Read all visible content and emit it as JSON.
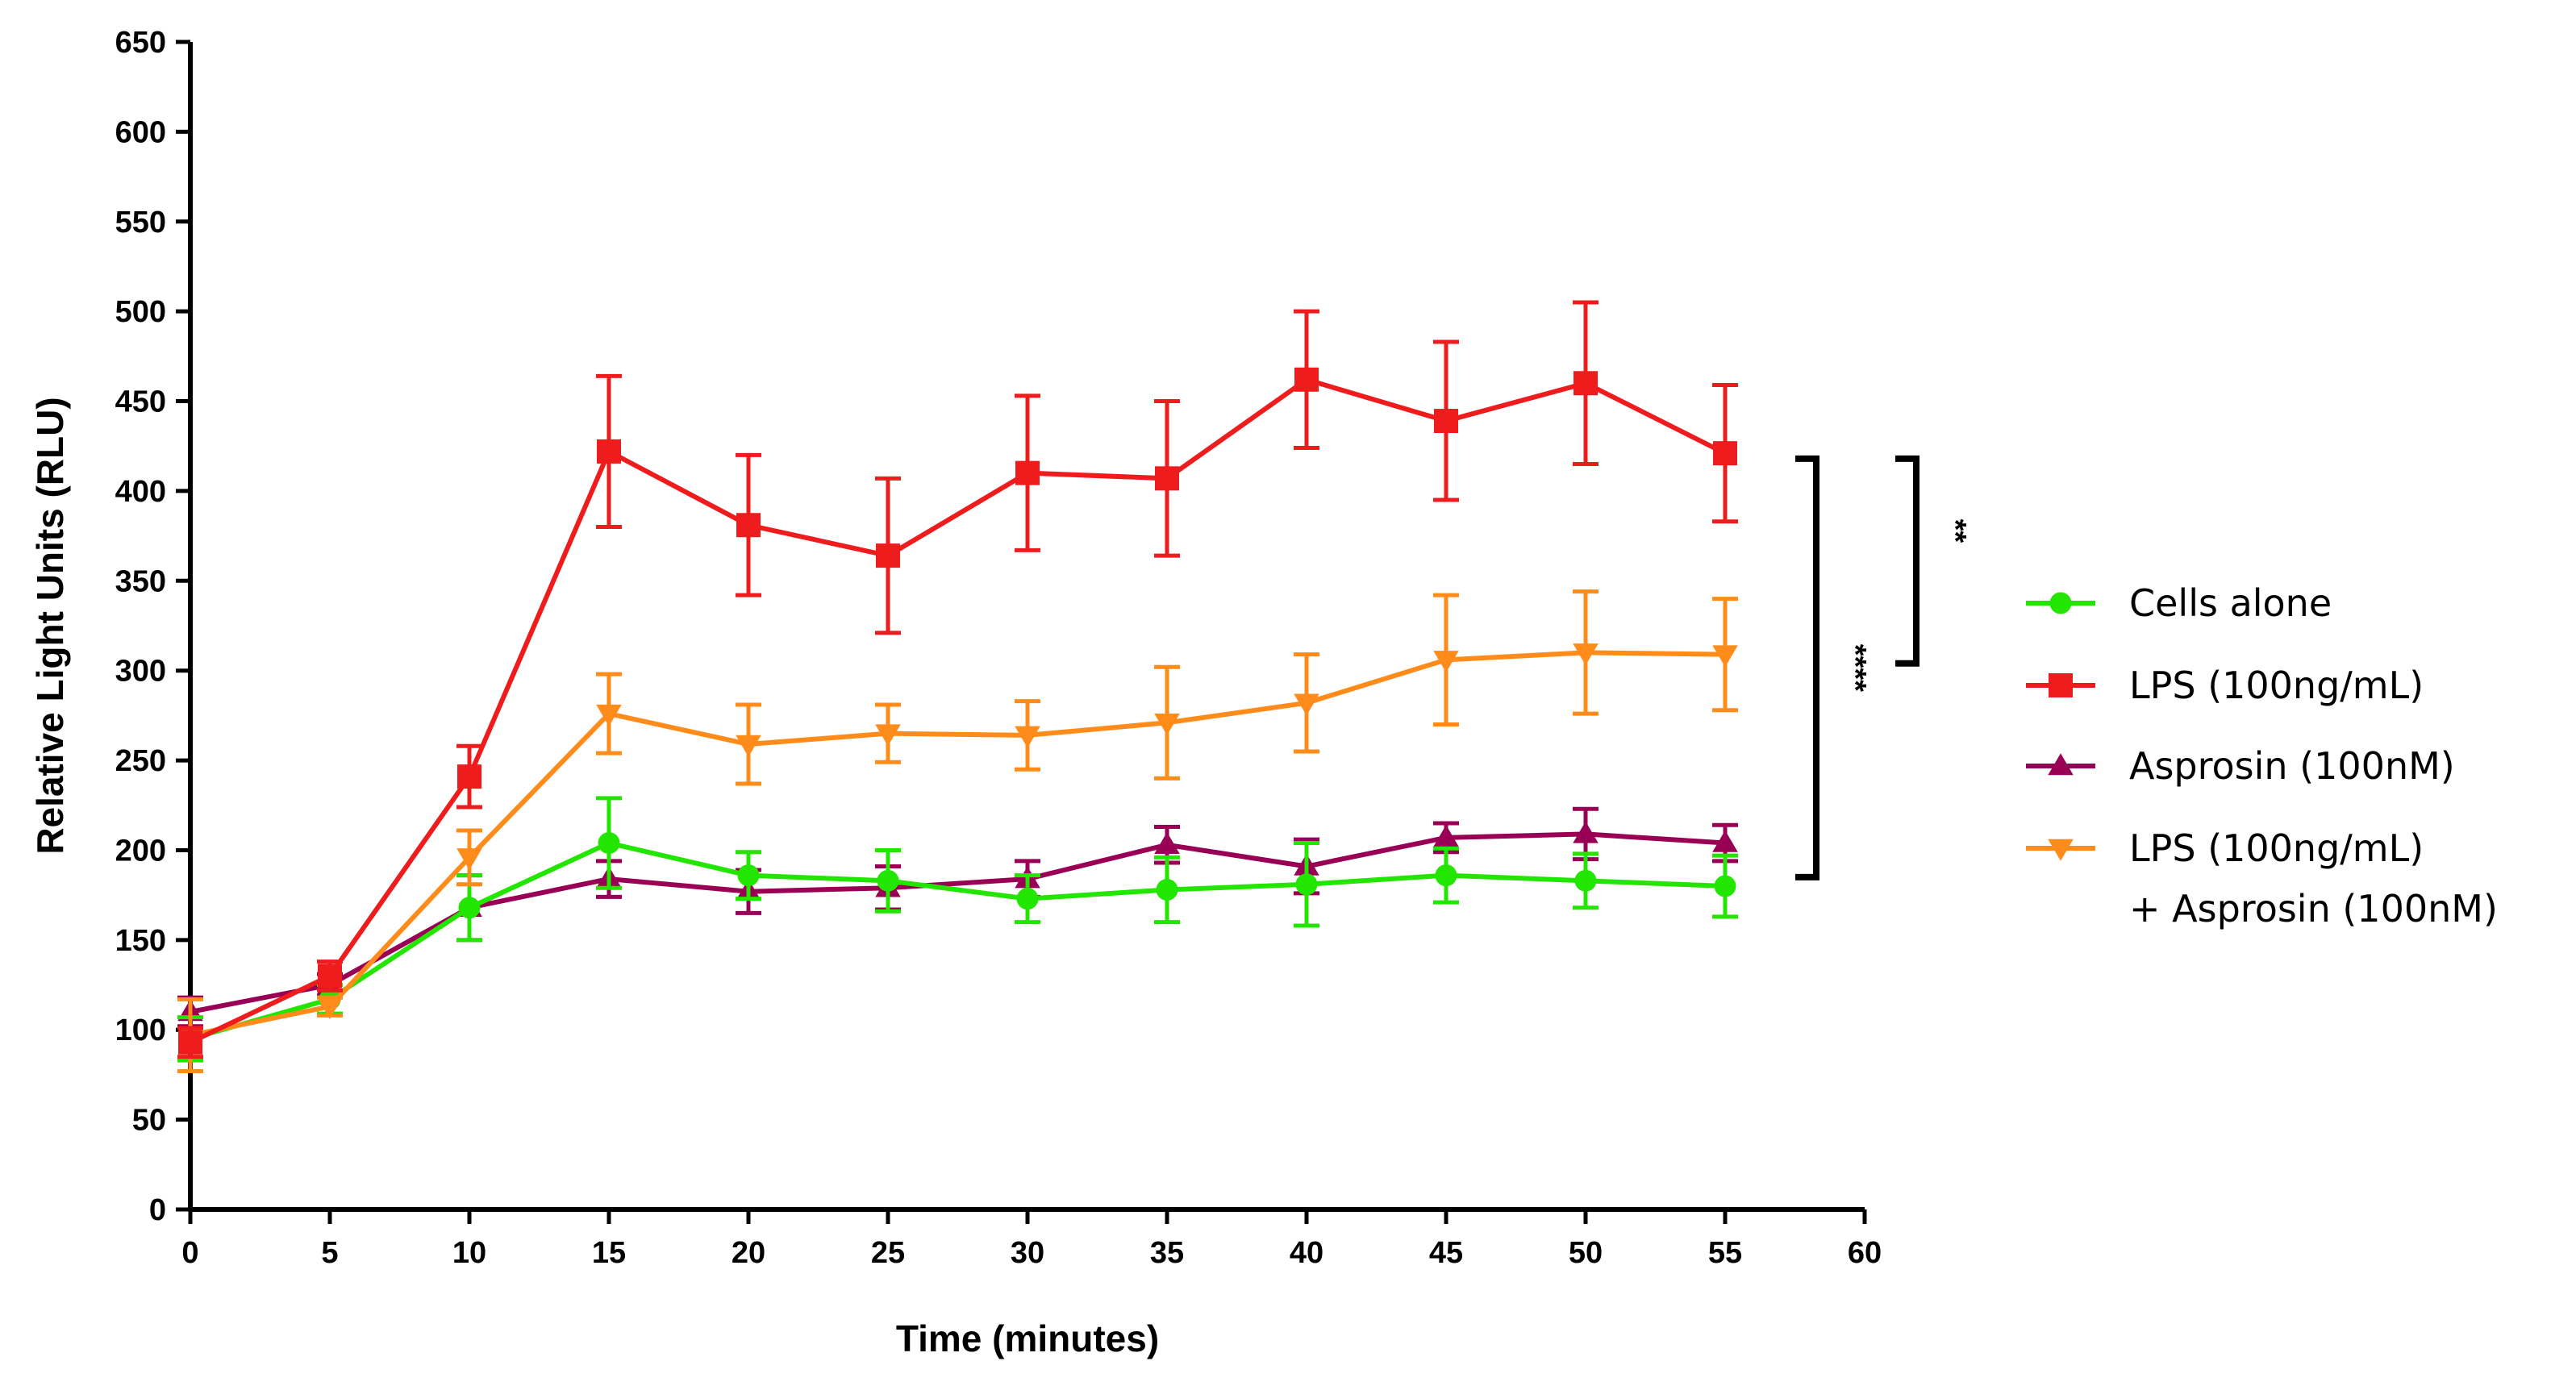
{
  "chart_data": {
    "type": "line",
    "title": "",
    "xlabel": "Time (minutes)",
    "ylabel": "Relative Light Units (RLU)",
    "xlim": [
      0,
      60
    ],
    "ylim": [
      0,
      650
    ],
    "x_ticks": [
      0,
      5,
      10,
      15,
      20,
      25,
      30,
      35,
      40,
      45,
      50,
      55,
      60
    ],
    "y_ticks": [
      0,
      50,
      100,
      150,
      200,
      250,
      300,
      350,
      400,
      450,
      500,
      550,
      600,
      650
    ],
    "x_tick_labels": [
      "0",
      "5",
      "10",
      "15",
      "20",
      "25",
      "30",
      "35",
      "40",
      "45",
      "50",
      "55",
      "60"
    ],
    "y_tick_labels": [
      "0",
      "50",
      "100",
      "150",
      "200",
      "250",
      "300",
      "350",
      "400",
      "450",
      "500",
      "550",
      "600",
      "650"
    ],
    "x": [
      0,
      5,
      10,
      15,
      20,
      25,
      30,
      35,
      40,
      45,
      50,
      55
    ],
    "grid": false,
    "legend_position": "right",
    "series": [
      {
        "name": "Cells alone",
        "color": "#22e600",
        "marker": "circle",
        "values": [
          95,
          117,
          168,
          204,
          186,
          183,
          173,
          178,
          181,
          186,
          183,
          180
        ],
        "errors": [
          12,
          8,
          18,
          25,
          13,
          17,
          13,
          18,
          23,
          15,
          15,
          17
        ]
      },
      {
        "name": "LPS (100ng/mL)",
        "color": "#ee1c1c",
        "marker": "square",
        "values": [
          93,
          130,
          241,
          422,
          381,
          364,
          410,
          407,
          462,
          439,
          460,
          421
        ],
        "errors": [
          8,
          8,
          17,
          42,
          39,
          43,
          43,
          43,
          38,
          44,
          45,
          38
        ]
      },
      {
        "name": "Asprosin (100nM)",
        "color": "#990055",
        "marker": "triangle-up",
        "values": [
          110,
          125,
          168,
          184,
          177,
          179,
          184,
          203,
          191,
          207,
          209,
          204
        ],
        "errors": [
          8,
          6,
          18,
          10,
          12,
          12,
          10,
          10,
          15,
          8,
          14,
          10
        ]
      },
      {
        "name": "LPS (100ng/mL)\n+ Asprosin (100nM)",
        "legend_lines": [
          "LPS (100ng/mL)",
          "+ Asprosin (100nM)"
        ],
        "color": "#ff8c1a",
        "marker": "triangle-down",
        "values": [
          97,
          113,
          196,
          276,
          259,
          265,
          264,
          271,
          282,
          306,
          310,
          309
        ],
        "errors": [
          20,
          5,
          15,
          22,
          22,
          16,
          19,
          31,
          27,
          36,
          34,
          31
        ]
      }
    ],
    "annotations": [
      {
        "text": "****",
        "from_value": 185,
        "to_value": 418,
        "between": [
          "Asprosin (100nM)",
          "LPS (100ng/mL)"
        ]
      },
      {
        "text": "**",
        "from_value": 304,
        "to_value": 418,
        "between": [
          "LPS (100ng/mL) + Asprosin (100nM)",
          "LPS (100ng/mL)"
        ]
      }
    ]
  }
}
